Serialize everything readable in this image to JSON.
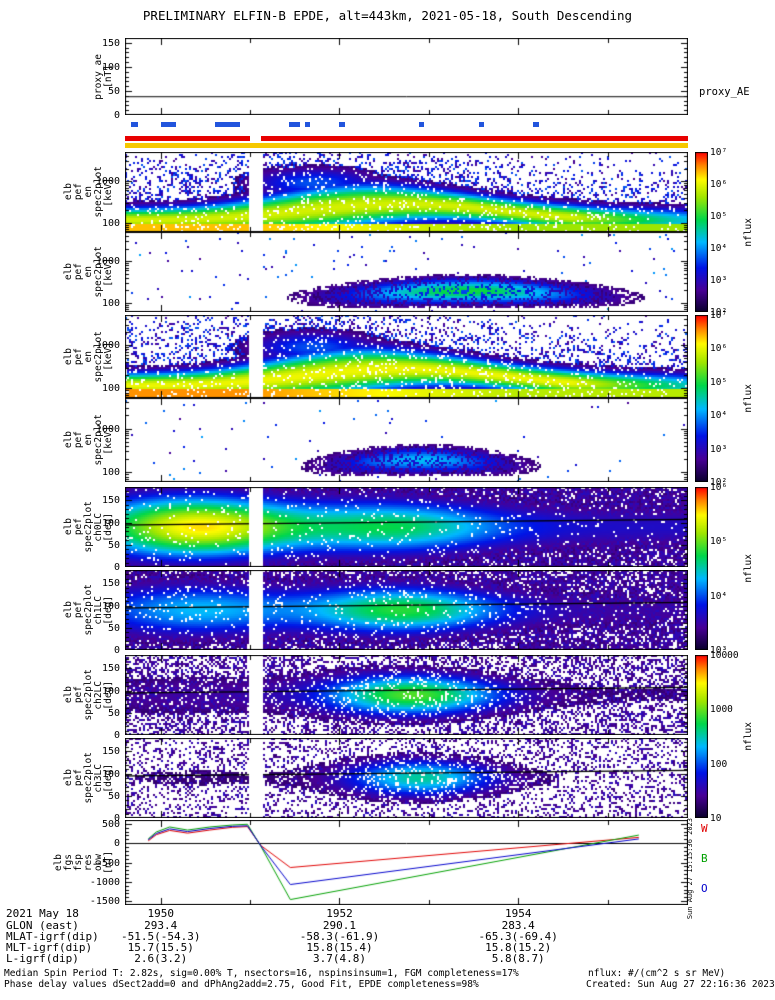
{
  "title": "PRELIMINARY ELFIN-B EPDE, alt=443km, 2021-05-18, South Descending",
  "time_axis": {
    "start": 1949.6,
    "end": 1955.9,
    "major_ticks": [
      1950,
      1952,
      1954
    ],
    "minor_ticks": [
      1951,
      1953,
      1955
    ],
    "tick_labels": [
      "1950",
      "1952",
      "1954"
    ]
  },
  "chart_data": [
    {
      "type": "line",
      "name": "proxy_AE",
      "ylabel_lines": [
        "proxy_ae",
        "[nT]"
      ],
      "right_label": "proxy_AE",
      "ylim": [
        0,
        160
      ],
      "yticks": [
        150,
        100,
        50,
        0
      ],
      "series": [
        {
          "name": "proxy_AE",
          "color": "#000000",
          "points": [
            [
              1949.6,
              38
            ],
            [
              1955.9,
              38
            ]
          ]
        }
      ]
    },
    {
      "type": "heatmap",
      "subtype": "energy",
      "name": "elb pef en spec2plot panel 1",
      "ylabel_lines": [
        "elb",
        "pef",
        "en",
        "spec2plot",
        "[keV]"
      ],
      "yscale": "log",
      "ylim": [
        60,
        5000
      ],
      "yticks": [
        1000,
        100
      ],
      "flux_decades": [
        2,
        7
      ],
      "profile": "en_dense",
      "summary": "Dense electron energy spectrogram: intense 80-300 keV yellow-green band across whole pass, band broadens 1951-1953, dark blue-purple 0.3-2 MeV speckle, vertical data gap near 1951"
    },
    {
      "type": "heatmap",
      "subtype": "energy",
      "name": "elb pef en spec2plot panel 2",
      "ylabel_lines": [
        "elb",
        "pef",
        "en",
        "spec2plot",
        "[keV]"
      ],
      "yscale": "log",
      "ylim": [
        60,
        5000
      ],
      "yticks": [
        1000,
        100
      ],
      "flux_decades": [
        2,
        7
      ],
      "profile": "en_sparse1",
      "summary": "Sparse spectrogram: faint green 100-400 keV arc 1952-1955, scattered blue points elsewhere"
    },
    {
      "type": "heatmap",
      "subtype": "energy",
      "name": "elb pef en spec2plot panel 3",
      "ylabel_lines": [
        "elb",
        "pef",
        "en",
        "spec2plot",
        "[keV]"
      ],
      "yscale": "log",
      "ylim": [
        60,
        5000
      ],
      "yticks": [
        1000,
        100
      ],
      "flux_decades": [
        2,
        7
      ],
      "profile": "en_dense2",
      "summary": "Dense spectrogram similar to panel 1 with bright yellow low-energy band along bottom edge"
    },
    {
      "type": "heatmap",
      "subtype": "energy",
      "name": "elb pef en spec2plot panel 4",
      "ylabel_lines": [
        "elb",
        "pef",
        "en",
        "spec2plot",
        "[keV]"
      ],
      "yscale": "log",
      "ylim": [
        60,
        5000
      ],
      "yticks": [
        1000,
        100
      ],
      "flux_decades": [
        2,
        7
      ],
      "profile": "en_sparse2",
      "summary": "Sparsest spectrogram: weak cyan 100-300 keV band 1952-1954"
    },
    {
      "type": "heatmap",
      "subtype": "pitch",
      "name": "elb pef spec2plot ch0LC",
      "ylabel_lines": [
        "elb",
        "pef",
        "spec2plot",
        "ch0LC",
        "[deg]"
      ],
      "ylim": [
        0,
        180
      ],
      "yticks": [
        150,
        100,
        50,
        0
      ],
      "profile": "pa0",
      "summary": "Pitch-angle spectrogram ch0: bright 50-130 deg band, most intense 1950-1951 and 1952-1953.5, black loss-cone line near 100 deg"
    },
    {
      "type": "heatmap",
      "subtype": "pitch",
      "name": "elb pef spec2plot ch1LC",
      "ylabel_lines": [
        "elb",
        "pef",
        "spec2plot",
        "ch1LC",
        "[deg]"
      ],
      "ylim": [
        0,
        180
      ],
      "yticks": [
        150,
        100,
        50,
        0
      ],
      "profile": "pa1",
      "summary": "Pitch-angle spectrogram ch1: cyan-green core near 90 deg, strongest 1952-1953.5, dark purple background"
    },
    {
      "type": "heatmap",
      "subtype": "pitch",
      "name": "elb pef spec2plot ch2LC",
      "ylabel_lines": [
        "elb",
        "pef",
        "spec2plot",
        "ch2LC",
        "[deg]"
      ],
      "ylim": [
        0,
        180
      ],
      "yticks": [
        150,
        100,
        50,
        0
      ],
      "profile": "pa2",
      "summary": "Pitch-angle spectrogram ch2: green-cyan blob near 90 deg 1952-1954, sparse dark speckle elsewhere"
    },
    {
      "type": "heatmap",
      "subtype": "pitch",
      "name": "elb pef spec2plot ch3LC",
      "ylabel_lines": [
        "elb",
        "pef",
        "spec2plot",
        "ch3LC",
        "[deg]"
      ],
      "ylim": [
        0,
        180
      ],
      "yticks": [
        150,
        100,
        50,
        0
      ],
      "profile": "pa3",
      "summary": "Pitch-angle spectrogram ch3: faint cyan blob near 90 deg 1952.3-1953.5, very sparse speckle"
    },
    {
      "type": "line",
      "name": "elb fgs fsp res obw",
      "ylabel_lines": [
        "elb",
        "fgs",
        "fsp",
        "res",
        "obw",
        "[nT]"
      ],
      "ylim": [
        -1600,
        600
      ],
      "yticks": [
        500,
        0,
        -500,
        -1000,
        -1500
      ],
      "series": [
        {
          "name": "W",
          "color": "#e00000",
          "points": [
            [
              1949.86,
              60
            ],
            [
              1949.95,
              220
            ],
            [
              1950.1,
              330
            ],
            [
              1950.3,
              260
            ],
            [
              1950.55,
              340
            ],
            [
              1950.8,
              410
            ],
            [
              1950.97,
              430
            ],
            [
              1951.12,
              -60
            ],
            [
              1951.45,
              -630
            ],
            [
              1955.35,
              150
            ]
          ]
        },
        {
          "name": "B",
          "color": "#00a000",
          "points": [
            [
              1949.86,
              110
            ],
            [
              1949.95,
              290
            ],
            [
              1950.1,
              420
            ],
            [
              1950.3,
              340
            ],
            [
              1950.55,
              420
            ],
            [
              1950.8,
              470
            ],
            [
              1950.97,
              490
            ],
            [
              1951.12,
              -80
            ],
            [
              1951.45,
              -1460
            ],
            [
              1955.35,
              210
            ]
          ]
        },
        {
          "name": "O",
          "color": "#0000cc",
          "points": [
            [
              1949.86,
              90
            ],
            [
              1949.95,
              250
            ],
            [
              1950.1,
              370
            ],
            [
              1950.3,
              300
            ],
            [
              1950.55,
              380
            ],
            [
              1950.8,
              435
            ],
            [
              1950.97,
              450
            ],
            [
              1951.12,
              -70
            ],
            [
              1951.45,
              -1070
            ],
            [
              1955.35,
              110
            ]
          ]
        }
      ]
    }
  ],
  "colorbars": [
    {
      "labels": [
        "10⁷",
        "10⁶",
        "10⁵",
        "10⁴",
        "10³",
        "10²"
      ],
      "title": "nflux"
    },
    {
      "labels": [
        "10⁷",
        "10⁶",
        "10⁵",
        "10⁴",
        "10³",
        "10²"
      ],
      "title": "nflux"
    },
    {
      "labels": [
        "10⁶",
        "10⁵",
        "10⁴",
        "10³"
      ],
      "title": "nflux"
    },
    {
      "labels": [
        "10000",
        "1000",
        "100",
        "10"
      ],
      "title": "nflux"
    }
  ],
  "quality_bars": {
    "blue_color": "#2255dd",
    "blue_segments": [
      [
        1949.67,
        1949.74
      ],
      [
        1950.0,
        1950.17
      ],
      [
        1950.61,
        1950.89
      ],
      [
        1951.44,
        1951.56
      ],
      [
        1951.61,
        1951.67
      ],
      [
        1952.0,
        1952.06
      ],
      [
        1952.89,
        1952.95
      ],
      [
        1953.56,
        1953.62
      ],
      [
        1954.17,
        1954.23
      ]
    ],
    "red_bar_color": "#e80000",
    "red_bar_gap": [
      1951.0,
      1951.12
    ],
    "yellow_bar_color": "#f6c800"
  },
  "axis_table": {
    "date_label": "2021 May 18",
    "time_tick_labels": [
      "1950",
      "1952",
      "1954"
    ],
    "rows": [
      {
        "label": "GLON (east)",
        "values": [
          "293.4",
          "290.1",
          "283.4"
        ]
      },
      {
        "label": "MLAT-igrf(dip)",
        "values": [
          "-51.5(-54.3)",
          "-58.3(-61.9)",
          "-65.3(-69.4)"
        ]
      },
      {
        "label": "MLT-igrf(dip)",
        "values": [
          "15.7(15.5)",
          "15.8(15.4)",
          "15.8(15.2)"
        ]
      },
      {
        "label": "L-igrf(dip)",
        "values": [
          "2.6(3.2)",
          "3.7(4.8)",
          "5.8(8.7)"
        ]
      }
    ]
  },
  "footer": {
    "line1": "Median Spin Period T: 2.82s, sig=0.00% T, nsectors=16, nspinsinsum=1, FGM completeness=17%",
    "line2": "Phase delay values dSect2add=0 and dPhAng2add=2.75, Good Fit, EPDE completeness=98%",
    "right1": "nflux: #/(cm^2 s sr MeV)",
    "right2": "Created: Sun Aug 27 22:16:36 2023"
  },
  "side_timestamp": "Sun Aug 27 15:15:36 2023"
}
